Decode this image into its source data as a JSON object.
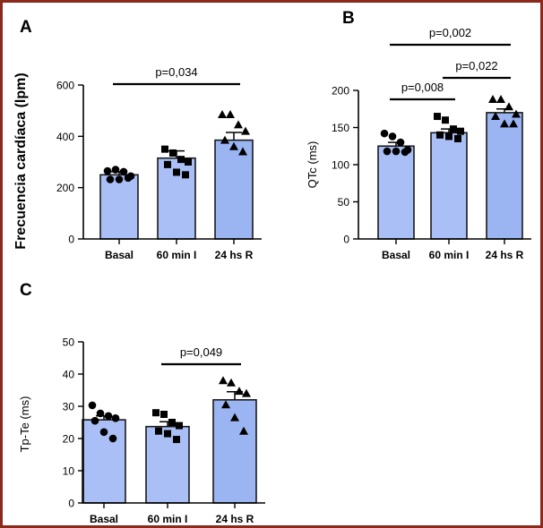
{
  "colors": {
    "frame": "#8b2a1c",
    "bar_fill": "#a9bff5",
    "bar_fill_last": "#9bb4f2",
    "bar_stroke": "#1a1a1a",
    "ink": "#000000"
  },
  "chart_data": [
    {
      "panel": "A",
      "type": "bar",
      "title": "",
      "xlabel": "",
      "ylabel": "Frecuencia cardíaca (lpm)",
      "categories": [
        "Basal",
        "60 min I",
        "24 hs R"
      ],
      "values": [
        250,
        315,
        385
      ],
      "errors": [
        12,
        28,
        30
      ],
      "ylim": [
        0,
        600
      ],
      "yticks": [
        0,
        200,
        400,
        600
      ],
      "markers": [
        "circle",
        "square",
        "triangle"
      ],
      "points": [
        [
          265,
          270,
          262,
          245,
          232,
          232,
          238
        ],
        [
          350,
          335,
          310,
          300,
          290,
          260,
          250
        ],
        [
          485,
          485,
          445,
          420,
          385,
          360,
          340
        ]
      ],
      "annotations": [
        {
          "label": "p=0,034",
          "from": 0,
          "to": 2
        }
      ]
    },
    {
      "panel": "B",
      "type": "bar",
      "title": "",
      "xlabel": "",
      "ylabel": "QTc (ms)",
      "categories": [
        "Basal",
        "60 min I",
        "24 hs R"
      ],
      "values": [
        125,
        143,
        170
      ],
      "errors": [
        5,
        5,
        5
      ],
      "ylim": [
        0,
        200
      ],
      "yticks": [
        0,
        50,
        100,
        150,
        200
      ],
      "markers": [
        "circle",
        "square",
        "triangle"
      ],
      "points": [
        [
          142,
          138,
          130,
          120,
          118,
          118,
          117
        ],
        [
          165,
          160,
          148,
          145,
          140,
          138,
          135
        ],
        [
          188,
          188,
          178,
          168,
          165,
          155,
          155
        ]
      ],
      "annotations": [
        {
          "label": "p=0,008",
          "from": 0,
          "to": 1
        },
        {
          "label": "p=0,022",
          "from": 1,
          "to": 2
        },
        {
          "label": "p=0,002",
          "from": 0,
          "to": 2
        }
      ]
    },
    {
      "panel": "C",
      "type": "bar",
      "title": "",
      "xlabel": "",
      "ylabel": "Tp-Te (ms)",
      "categories": [
        "Basal",
        "60 min I",
        "24 hs R"
      ],
      "values": [
        25.8,
        23.7,
        32
      ],
      "errors": [
        1.2,
        1.5,
        2.5
      ],
      "ylim": [
        0,
        50
      ],
      "yticks": [
        0,
        10,
        20,
        30,
        40,
        50
      ],
      "markers": [
        "circle",
        "square",
        "triangle"
      ],
      "points": [
        [
          30.3,
          27.8,
          27,
          26.3,
          25.5,
          22,
          20
        ],
        [
          28,
          27.5,
          25,
          24,
          22.3,
          21.5,
          19.7
        ],
        [
          38,
          37.3,
          34.7,
          34,
          30.5,
          26.5,
          22.3
        ]
      ],
      "annotations": [
        {
          "label": "p=0,049",
          "from": 1,
          "to": 2
        }
      ]
    }
  ]
}
